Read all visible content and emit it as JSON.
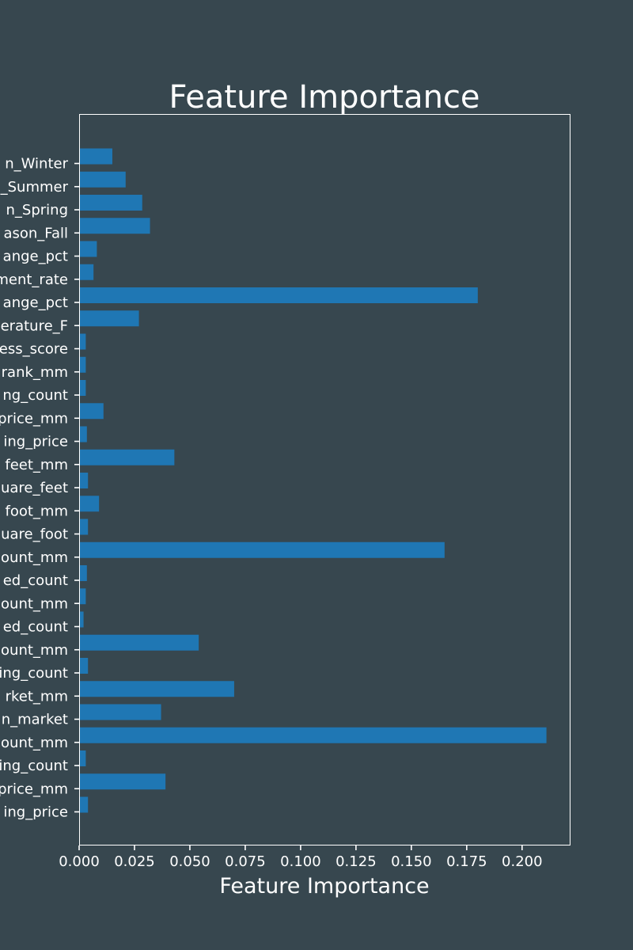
{
  "chart_data": {
    "type": "bar",
    "orientation": "horizontal",
    "title": "Feature Importance",
    "xlabel": "Feature Importance",
    "ylabel": "",
    "xlim": [
      0,
      0.2215
    ],
    "xticks": [
      "0.000",
      "0.025",
      "0.050",
      "0.075",
      "0.100",
      "0.125",
      "0.150",
      "0.175",
      "0.200"
    ],
    "grid": false,
    "bar_color": "#1f77b4",
    "background_color": "#37474f",
    "text_color": "#ffffff",
    "categories": [
      "ing_price",
      "price_mm",
      "ing_count",
      "ount_mm",
      "n_market",
      "rket_mm",
      "ing_count",
      "ount_mm",
      "ed_count",
      "ount_mm",
      "ed_count",
      "ount_mm",
      "uare_foot",
      "foot_mm",
      "uare_feet",
      "feet_mm",
      "ing_price",
      "price_mm",
      "ng_count",
      "rank_mm",
      "ess_score",
      "erature_F",
      "ange_pct",
      "ment_rate",
      "ange_pct",
      "ason_Fall",
      "n_Spring",
      "_Summer",
      "n_Winter"
    ],
    "values": [
      0.004,
      0.039,
      0.003,
      0.211,
      0.037,
      0.07,
      0.004,
      0.054,
      0.002,
      0.003,
      0.0035,
      0.165,
      0.004,
      0.009,
      0.004,
      0.043,
      0.0035,
      0.011,
      0.003,
      0.003,
      0.003,
      0.027,
      0.18,
      0.0065,
      0.008,
      0.032,
      0.0285,
      0.021,
      0.015
    ]
  }
}
